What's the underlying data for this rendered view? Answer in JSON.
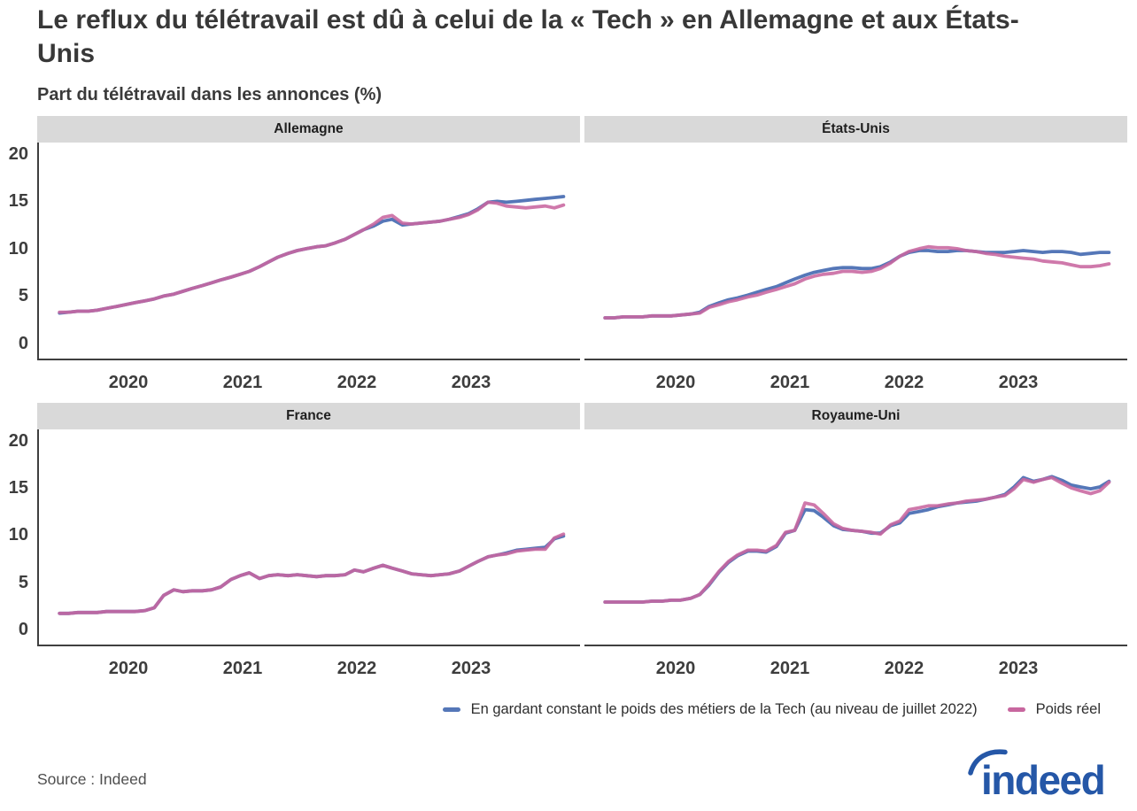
{
  "header": {
    "title": "Le reflux du télétravail est dû à celui de la « Tech » en Allemagne et aux États-Unis",
    "subtitle": "Part du télétravail dans les annonces (%)"
  },
  "colors": {
    "tech_constant": "#5577b8",
    "poids_reel": "#c8679f",
    "strip_background": "#d9d9d9",
    "axis": "#3f3f3f",
    "text_dark": "#383838",
    "logo_blue": "#2557a7"
  },
  "legend": {
    "items": [
      {
        "label": "En gardant constant le poids des métiers de la Tech (au niveau de juillet 2022)",
        "color": "#5577b8"
      },
      {
        "label": "Poids réel",
        "color": "#c8679f"
      }
    ]
  },
  "footer": {
    "source": "Source : Indeed",
    "logo_text": "indeed"
  },
  "chart_data": {
    "type": "line",
    "title": "Le reflux du télétravail est dû à celui de la « Tech » en Allemagne et aux États-Unis",
    "subtitle": "Part du télétravail dans les annonces (%)",
    "ylabel": "Part du télétravail dans les annonces (%)",
    "xlabel": "",
    "legend_position": "bottom",
    "grid": false,
    "y_ticks": [
      20,
      15,
      10,
      5,
      0
    ],
    "x_ticks": [
      2020,
      2021,
      2022,
      2023
    ],
    "x_range": [
      2019.2,
      2023.95
    ],
    "y_range": [
      -1.5,
      21.3
    ],
    "series_names": {
      "tech_constant": "En gardant constant le poids des métiers de la Tech (au niveau de juillet 2022)",
      "poids_reel": "Poids réel"
    },
    "x": [
      2019.38,
      2019.46,
      2019.54,
      2019.63,
      2019.71,
      2019.79,
      2019.88,
      2019.96,
      2020.04,
      2020.13,
      2020.21,
      2020.29,
      2020.38,
      2020.46,
      2020.54,
      2020.63,
      2020.71,
      2020.79,
      2020.88,
      2020.96,
      2021.04,
      2021.13,
      2021.21,
      2021.29,
      2021.38,
      2021.46,
      2021.54,
      2021.63,
      2021.71,
      2021.79,
      2021.88,
      2021.96,
      2022.04,
      2022.13,
      2022.21,
      2022.29,
      2022.38,
      2022.46,
      2022.54,
      2022.63,
      2022.71,
      2022.79,
      2022.88,
      2022.96,
      2023.04,
      2023.13,
      2023.21,
      2023.29,
      2023.38,
      2023.46,
      2023.54,
      2023.63,
      2023.71,
      2023.79
    ],
    "panels": [
      {
        "title": "Allemagne",
        "tech_constant": [
          3.3,
          3.4,
          3.5,
          3.5,
          3.6,
          3.8,
          4.0,
          4.2,
          4.4,
          4.6,
          4.8,
          5.1,
          5.3,
          5.6,
          5.9,
          6.2,
          6.5,
          6.8,
          7.1,
          7.4,
          7.7,
          8.2,
          8.7,
          9.2,
          9.6,
          9.9,
          10.1,
          10.3,
          10.4,
          10.7,
          11.1,
          11.6,
          12.1,
          12.5,
          13.0,
          13.2,
          12.6,
          12.7,
          12.8,
          12.9,
          13.0,
          13.2,
          13.5,
          13.8,
          14.3,
          15.0,
          15.1,
          15.0,
          15.1,
          15.2,
          15.3,
          15.4,
          15.5,
          15.6
        ],
        "poids_reel": [
          3.4,
          3.4,
          3.5,
          3.5,
          3.6,
          3.8,
          4.0,
          4.2,
          4.4,
          4.6,
          4.8,
          5.1,
          5.3,
          5.6,
          5.9,
          6.2,
          6.5,
          6.8,
          7.1,
          7.4,
          7.7,
          8.2,
          8.7,
          9.2,
          9.6,
          9.9,
          10.1,
          10.3,
          10.4,
          10.7,
          11.1,
          11.6,
          12.1,
          12.7,
          13.4,
          13.6,
          12.8,
          12.7,
          12.8,
          12.9,
          13.0,
          13.2,
          13.4,
          13.7,
          14.2,
          15.0,
          14.9,
          14.6,
          14.5,
          14.4,
          14.5,
          14.6,
          14.4,
          14.7
        ]
      },
      {
        "title": "États-Unis",
        "tech_constant": [
          2.8,
          2.8,
          2.9,
          2.9,
          2.9,
          3.0,
          3.0,
          3.0,
          3.1,
          3.2,
          3.4,
          4.0,
          4.4,
          4.7,
          4.9,
          5.2,
          5.5,
          5.8,
          6.1,
          6.5,
          6.9,
          7.3,
          7.6,
          7.8,
          8.0,
          8.1,
          8.1,
          8.0,
          8.0,
          8.2,
          8.7,
          9.3,
          9.7,
          9.9,
          9.9,
          9.8,
          9.8,
          9.9,
          9.9,
          9.8,
          9.7,
          9.7,
          9.7,
          9.8,
          9.9,
          9.8,
          9.7,
          9.8,
          9.8,
          9.7,
          9.5,
          9.6,
          9.7,
          9.7
        ],
        "poids_reel": [
          2.8,
          2.8,
          2.9,
          2.9,
          2.9,
          3.0,
          3.0,
          3.0,
          3.1,
          3.2,
          3.3,
          3.9,
          4.2,
          4.5,
          4.7,
          5.0,
          5.2,
          5.5,
          5.8,
          6.1,
          6.4,
          6.9,
          7.2,
          7.4,
          7.5,
          7.7,
          7.7,
          7.6,
          7.7,
          8.0,
          8.6,
          9.3,
          9.8,
          10.1,
          10.3,
          10.2,
          10.2,
          10.1,
          9.9,
          9.8,
          9.6,
          9.5,
          9.3,
          9.2,
          9.1,
          9.0,
          8.8,
          8.7,
          8.6,
          8.4,
          8.2,
          8.2,
          8.3,
          8.5
        ]
      },
      {
        "title": "France",
        "tech_constant": [
          1.8,
          1.8,
          1.9,
          1.9,
          1.9,
          2.0,
          2.0,
          2.0,
          2.0,
          2.1,
          2.4,
          3.7,
          4.3,
          4.1,
          4.2,
          4.2,
          4.3,
          4.6,
          5.4,
          5.8,
          6.1,
          5.5,
          5.8,
          5.9,
          5.8,
          5.9,
          5.8,
          5.7,
          5.8,
          5.8,
          5.9,
          6.4,
          6.2,
          6.6,
          6.9,
          6.6,
          6.3,
          6.0,
          5.9,
          5.8,
          5.9,
          6.0,
          6.3,
          6.8,
          7.3,
          7.8,
          8.0,
          8.2,
          8.5,
          8.6,
          8.7,
          8.8,
          9.7,
          10.0
        ],
        "poids_reel": [
          1.8,
          1.8,
          1.9,
          1.9,
          1.9,
          2.0,
          2.0,
          2.0,
          2.0,
          2.1,
          2.4,
          3.7,
          4.3,
          4.1,
          4.2,
          4.2,
          4.3,
          4.6,
          5.4,
          5.8,
          6.1,
          5.5,
          5.8,
          5.9,
          5.8,
          5.9,
          5.8,
          5.7,
          5.8,
          5.8,
          5.9,
          6.4,
          6.2,
          6.6,
          6.9,
          6.6,
          6.3,
          6.0,
          5.9,
          5.8,
          5.9,
          6.0,
          6.3,
          6.8,
          7.3,
          7.8,
          8.0,
          8.1,
          8.4,
          8.5,
          8.6,
          8.6,
          9.8,
          10.2
        ]
      },
      {
        "title": "Royaume-Uni",
        "tech_constant": [
          3.0,
          3.0,
          3.0,
          3.0,
          3.0,
          3.1,
          3.1,
          3.2,
          3.2,
          3.4,
          3.8,
          4.8,
          6.2,
          7.2,
          7.9,
          8.4,
          8.4,
          8.3,
          8.9,
          10.3,
          10.6,
          12.8,
          12.7,
          12.0,
          11.1,
          10.7,
          10.6,
          10.5,
          10.3,
          10.3,
          11.1,
          11.4,
          12.4,
          12.6,
          12.8,
          13.1,
          13.3,
          13.5,
          13.6,
          13.7,
          13.9,
          14.1,
          14.4,
          15.2,
          16.2,
          15.8,
          16.0,
          16.3,
          15.9,
          15.4,
          15.2,
          15.0,
          15.2,
          15.8
        ],
        "poids_reel": [
          3.0,
          3.0,
          3.0,
          3.0,
          3.0,
          3.1,
          3.1,
          3.2,
          3.2,
          3.4,
          3.8,
          4.9,
          6.3,
          7.3,
          8.0,
          8.5,
          8.5,
          8.4,
          9.0,
          10.4,
          10.6,
          13.5,
          13.3,
          12.4,
          11.3,
          10.8,
          10.6,
          10.5,
          10.4,
          10.2,
          11.2,
          11.6,
          12.8,
          13.0,
          13.2,
          13.2,
          13.4,
          13.5,
          13.7,
          13.8,
          13.9,
          14.1,
          14.3,
          15.0,
          16.0,
          15.7,
          16.0,
          16.2,
          15.6,
          15.1,
          14.8,
          14.5,
          14.8,
          15.7
        ]
      }
    ]
  }
}
